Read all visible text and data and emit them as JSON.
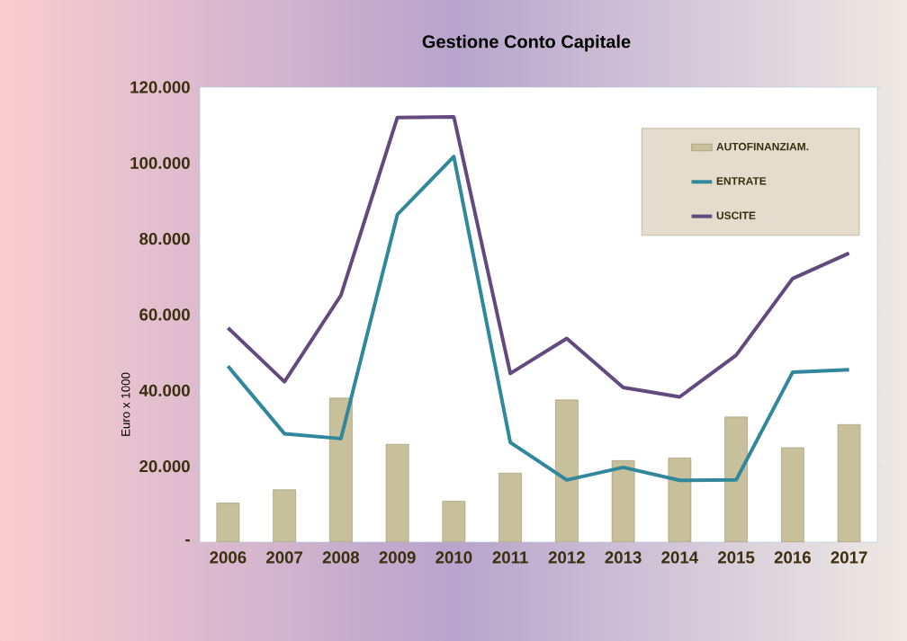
{
  "chart_data": {
    "type": "line",
    "title": "Gestione Conto Capitale",
    "ylabel": "Euro x 1000",
    "categories": [
      "2006",
      "2007",
      "2008",
      "2009",
      "2010",
      "2011",
      "2012",
      "2013",
      "2014",
      "2015",
      "2016",
      "2017"
    ],
    "series": [
      {
        "name": "AUTOFINANZIAM.",
        "type": "bar",
        "color": "#c8c09a",
        "values": [
          10300,
          13800,
          38000,
          25800,
          10800,
          18200,
          37500,
          21500,
          22200,
          33000,
          24900,
          31000
        ]
      },
      {
        "name": "ENTRATE",
        "color": "#31879b",
        "values": [
          46400,
          28600,
          27300,
          86400,
          101700,
          26300,
          16400,
          19700,
          16300,
          16400,
          44800,
          45500
        ]
      },
      {
        "name": "USCITE",
        "color": "#634a7e",
        "values": [
          56500,
          42300,
          65100,
          112000,
          112200,
          44500,
          53700,
          40800,
          38300,
          49300,
          69500,
          76200
        ]
      }
    ],
    "ylim": [
      0,
      120000
    ],
    "yticks": [
      {
        "value": 0,
        "label": "-"
      },
      {
        "value": 20000,
        "label": "20.000"
      },
      {
        "value": 40000,
        "label": "40.000"
      },
      {
        "value": 60000,
        "label": "60.000"
      },
      {
        "value": 80000,
        "label": "80.000"
      },
      {
        "value": 100000,
        "label": "100.000"
      },
      {
        "value": 120000,
        "label": "120.000"
      }
    ],
    "legend": "top right",
    "grid": false,
    "marker": "none",
    "line_style": "solid"
  }
}
